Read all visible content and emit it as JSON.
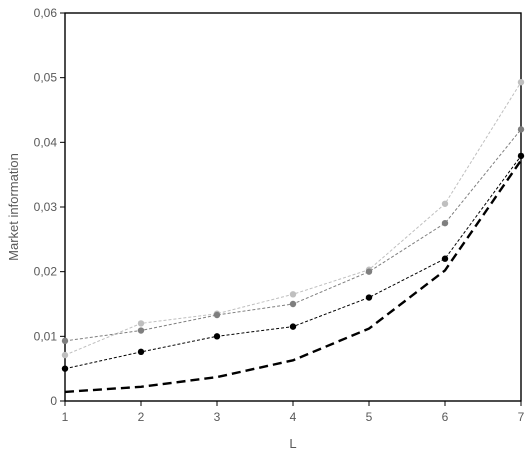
{
  "chart_data": {
    "type": "line",
    "title": "",
    "xlabel": "L",
    "ylabel": "Market information",
    "x": [
      1,
      2,
      3,
      4,
      5,
      6,
      7
    ],
    "x_tick_labels": [
      "1",
      "2",
      "3",
      "4",
      "5",
      "6",
      "7"
    ],
    "xlim": [
      1,
      7
    ],
    "ylim": [
      0,
      0.06
    ],
    "y_ticks": [
      0,
      0.01,
      0.02,
      0.03,
      0.04,
      0.05,
      0.06
    ],
    "y_tick_labels": [
      "0",
      "0,01",
      "0,02",
      "0,03",
      "0,04",
      "0,05",
      "0,06"
    ],
    "grid": false,
    "legend": "none",
    "series": [
      {
        "values": [
          0.0014,
          0.0022,
          0.0037,
          0.0063,
          0.0112,
          0.0202,
          0.0372
        ],
        "color": "#000000",
        "line_style": "long-dash",
        "markers": false
      },
      {
        "values": [
          0.005,
          0.0076,
          0.01,
          0.0115,
          0.016,
          0.022,
          0.0379
        ],
        "color": "#000000",
        "line_style": "short-dash",
        "markers": true
      },
      {
        "values": [
          0.0093,
          0.0109,
          0.0133,
          0.015,
          0.02,
          0.0275,
          0.042
        ],
        "color": "#7f7f7f",
        "line_style": "short-dash",
        "markers": true
      },
      {
        "values": [
          0.0071,
          0.012,
          0.0135,
          0.0165,
          0.0203,
          0.0305,
          0.0493
        ],
        "color": "#bfbfbf",
        "line_style": "short-dash",
        "markers": true
      }
    ]
  }
}
